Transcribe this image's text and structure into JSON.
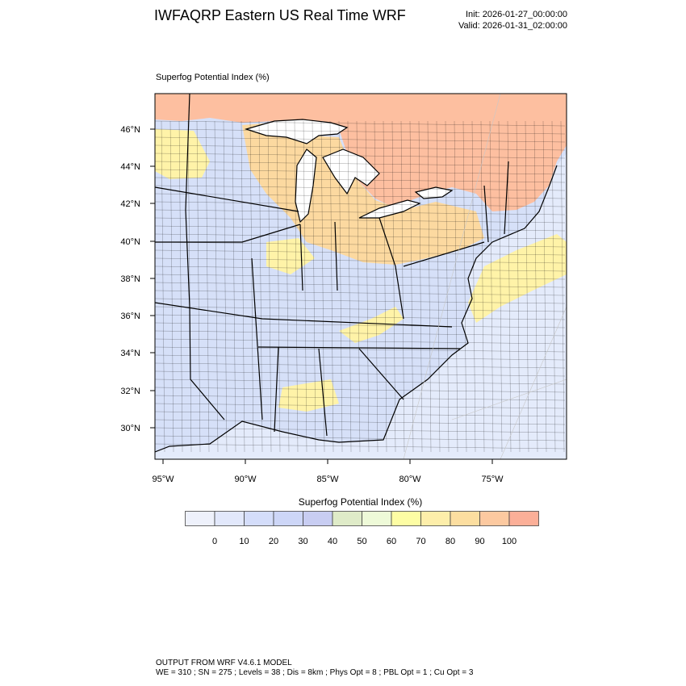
{
  "header": {
    "title": "IWFAQRP Eastern US Real Time WRF",
    "init": "Init: 2026-01-27_00:00:00",
    "valid": "Valid: 2026-01-31_02:00:00"
  },
  "map": {
    "field_label": "Superfog Potential Index   (%)",
    "lat_labels": [
      "46°N",
      "44°N",
      "42°N",
      "40°N",
      "38°N",
      "36°N",
      "34°N",
      "32°N",
      "30°N"
    ],
    "lon_labels": [
      "95°W",
      "90°W",
      "85°W",
      "80°W",
      "75°W"
    ],
    "colors": {
      "ocean": "#e4ebfb",
      "canada": "#fdbfa0",
      "low_index": "#d6e0f8",
      "mid_index": "#fff3a8",
      "high_index": "#fcd9a0"
    }
  },
  "colorbar": {
    "title": "Superfog Potential Index  (%)",
    "colors": [
      "#eef1fb",
      "#e2e8fb",
      "#d4ddfa",
      "#cdd6f7",
      "#c8cdf2",
      "#dfebc8",
      "#eefad8",
      "#fdfda4",
      "#fdeeaa",
      "#fcdea0",
      "#fcc9a0",
      "#fbaf98"
    ],
    "tick_labels": [
      "0",
      "10",
      "20",
      "30",
      "40",
      "50",
      "60",
      "70",
      "80",
      "90",
      "100"
    ]
  },
  "footer": {
    "line1": "OUTPUT FROM WRF V4.6.1 MODEL",
    "line2": "WE = 310 ; SN = 275 ; Levels = 38 ; Dis = 8km ; Phys Opt = 8 ; PBL Opt = 1 ; Cu Opt = 3"
  }
}
